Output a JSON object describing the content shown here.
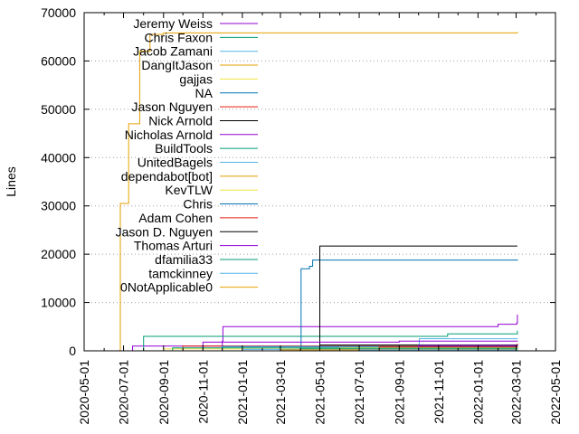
{
  "chart_data": {
    "type": "line",
    "ylabel": "Lines",
    "xlabel": "",
    "title": "",
    "ylim": [
      0,
      70000
    ],
    "xlim": [
      "2020-05-01",
      "2022-05-01"
    ],
    "yticks": [
      0,
      10000,
      20000,
      30000,
      40000,
      50000,
      60000,
      70000
    ],
    "xticks": [
      "2020-05-01",
      "2020-07-01",
      "2020-09-01",
      "2020-11-01",
      "2021-01-01",
      "2021-03-01",
      "2021-05-01",
      "2021-07-01",
      "2021-09-01",
      "2021-11-01",
      "2022-01-01",
      "2022-03-01",
      "2022-05-01"
    ],
    "grid": "horizontal dotted",
    "legend_position": "top-left",
    "series": [
      {
        "name": "Jeremy Weiss",
        "color": "#9400d3",
        "points": [
          [
            "2020-06-20",
            0
          ],
          [
            "2020-07-15",
            1000
          ],
          [
            "2020-12-01",
            2000
          ],
          [
            "2020-12-02",
            5000
          ],
          [
            "2021-12-01",
            5000
          ],
          [
            "2022-02-01",
            5500
          ],
          [
            "2022-03-02",
            5800
          ],
          [
            "2022-03-03",
            7500
          ]
        ]
      },
      {
        "name": "Chris Faxon",
        "color": "#009e73",
        "points": [
          [
            "2020-06-20",
            0
          ],
          [
            "2020-08-01",
            3000
          ],
          [
            "2021-11-01",
            3000
          ],
          [
            "2021-11-15",
            3500
          ],
          [
            "2022-03-03",
            4200
          ]
        ]
      },
      {
        "name": "Jacob Zamani",
        "color": "#56b4e9",
        "points": [
          [
            "2020-06-20",
            0
          ],
          [
            "2021-10-01",
            0
          ],
          [
            "2021-10-02",
            2500
          ],
          [
            "2022-03-03",
            2600
          ]
        ]
      },
      {
        "name": "DangItJason",
        "color": "#e69f00",
        "points": [
          [
            "2020-06-20",
            0
          ],
          [
            "2020-06-25",
            100
          ],
          [
            "2020-06-26",
            30500
          ],
          [
            "2020-07-08",
            30500
          ],
          [
            "2020-07-09",
            47000
          ],
          [
            "2020-07-25",
            47000
          ],
          [
            "2020-07-26",
            62000
          ],
          [
            "2020-08-10",
            62000
          ],
          [
            "2020-08-11",
            65500
          ],
          [
            "2020-09-01",
            65800
          ],
          [
            "2022-03-03",
            66000
          ]
        ]
      },
      {
        "name": "gajjas",
        "color": "#f0e442",
        "points": [
          [
            "2020-06-20",
            0
          ],
          [
            "2020-09-01",
            400
          ],
          [
            "2022-03-03",
            500
          ]
        ]
      },
      {
        "name": "NA",
        "color": "#0072b2",
        "points": [
          [
            "2020-06-20",
            0
          ],
          [
            "2021-04-01",
            0
          ],
          [
            "2021-04-02",
            17000
          ],
          [
            "2021-04-15",
            17500
          ],
          [
            "2021-04-20",
            18800
          ],
          [
            "2022-03-03",
            18900
          ]
        ]
      },
      {
        "name": "Jason Nguyen",
        "color": "#e51e10",
        "points": [
          [
            "2020-06-20",
            0
          ],
          [
            "2020-10-01",
            1000
          ],
          [
            "2022-03-03",
            1500
          ]
        ]
      },
      {
        "name": "Nick Arnold",
        "color": "#000000",
        "points": [
          [
            "2020-06-20",
            0
          ],
          [
            "2021-04-30",
            0
          ],
          [
            "2021-05-01",
            21700
          ],
          [
            "2022-03-03",
            21700
          ]
        ]
      },
      {
        "name": "Nicholas Arnold",
        "color": "#9400d3",
        "points": [
          [
            "2020-06-20",
            0
          ],
          [
            "2020-11-01",
            1800
          ],
          [
            "2021-09-01",
            2000
          ],
          [
            "2022-03-03",
            2100
          ]
        ]
      },
      {
        "name": "BuildTools",
        "color": "#009e73",
        "points": [
          [
            "2020-06-20",
            0
          ],
          [
            "2020-09-15",
            600
          ],
          [
            "2022-03-03",
            700
          ]
        ]
      },
      {
        "name": "UnitedBagels",
        "color": "#56b4e9",
        "points": [
          [
            "2020-06-20",
            0
          ],
          [
            "2021-01-01",
            300
          ],
          [
            "2022-03-03",
            400
          ]
        ]
      },
      {
        "name": "dependabot[bot]",
        "color": "#e69f00",
        "points": [
          [
            "2020-06-20",
            0
          ],
          [
            "2021-03-01",
            200
          ],
          [
            "2022-03-03",
            300
          ]
        ]
      },
      {
        "name": "KevTLW",
        "color": "#f0e442",
        "points": [
          [
            "2020-06-20",
            0
          ],
          [
            "2021-06-01",
            600
          ],
          [
            "2022-03-03",
            700
          ]
        ]
      },
      {
        "name": "Chris",
        "color": "#0072b2",
        "points": [
          [
            "2020-06-20",
            0
          ],
          [
            "2020-12-01",
            900
          ],
          [
            "2022-03-03",
            1000
          ]
        ]
      },
      {
        "name": "Adam Cohen",
        "color": "#e51e10",
        "points": [
          [
            "2020-06-20",
            0
          ],
          [
            "2021-08-01",
            800
          ],
          [
            "2022-03-03",
            900
          ]
        ]
      },
      {
        "name": "Jason D. Nguyen",
        "color": "#000000",
        "points": [
          [
            "2020-06-20",
            0
          ],
          [
            "2021-05-01",
            1200
          ],
          [
            "2022-03-03",
            1300
          ]
        ]
      },
      {
        "name": "Thomas Arturi",
        "color": "#9400d3",
        "points": [
          [
            "2020-06-20",
            0
          ],
          [
            "2021-10-01",
            1100
          ],
          [
            "2022-03-03",
            1200
          ]
        ]
      },
      {
        "name": "dfamilia33",
        "color": "#009e73",
        "points": [
          [
            "2020-06-20",
            0
          ],
          [
            "2021-04-01",
            500
          ],
          [
            "2022-03-03",
            600
          ]
        ]
      },
      {
        "name": "tamckinney",
        "color": "#56b4e9",
        "points": [
          [
            "2020-06-20",
            0
          ],
          [
            "2021-07-01",
            150
          ],
          [
            "2022-03-03",
            200
          ]
        ]
      },
      {
        "name": "0NotApplicable0",
        "color": "#e69f00",
        "points": [
          [
            "2020-06-20",
            0
          ],
          [
            "2020-06-21",
            0
          ],
          [
            "2022-03-03",
            100
          ]
        ]
      }
    ]
  }
}
